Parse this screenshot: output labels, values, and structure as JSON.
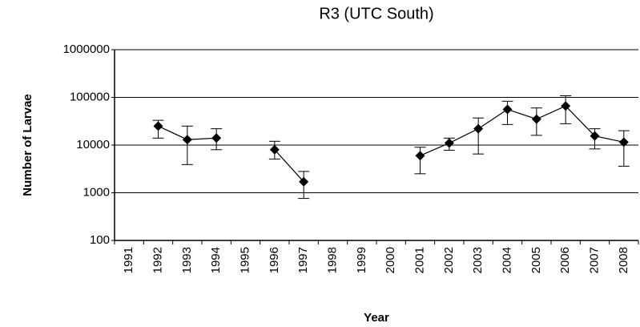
{
  "chart_data": {
    "type": "line",
    "title": "R3 (UTC South)",
    "x_label": "Year",
    "y_label": "Number of Larvae",
    "categories": [
      "1991",
      "1992",
      "1993",
      "1994",
      "1995",
      "1996",
      "1997",
      "1998",
      "1999",
      "2000",
      "2001",
      "2002",
      "2003",
      "2004",
      "2005",
      "2006",
      "2007",
      "2008"
    ],
    "series": [
      {
        "color": "#000000",
        "values": [
          null,
          25000,
          13000,
          14000,
          null,
          8000,
          1700,
          null,
          null,
          null,
          6000,
          11000,
          22000,
          56000,
          35000,
          66000,
          15500,
          11500
        ],
        "lower": [
          null,
          14000,
          3900,
          8000,
          null,
          5100,
          760,
          null,
          null,
          null,
          2500,
          7800,
          6500,
          27000,
          16000,
          28000,
          8300,
          3600
        ],
        "upper": [
          null,
          33000,
          25000,
          22000,
          null,
          12000,
          2800,
          null,
          null,
          null,
          9000,
          14000,
          37000,
          83000,
          60000,
          108000,
          22000,
          20000
        ]
      }
    ],
    "ylim": [
      100,
      1000000
    ],
    "yticks": [
      100,
      1000,
      10000,
      100000,
      1000000
    ],
    "log_y": true,
    "grid": true
  }
}
